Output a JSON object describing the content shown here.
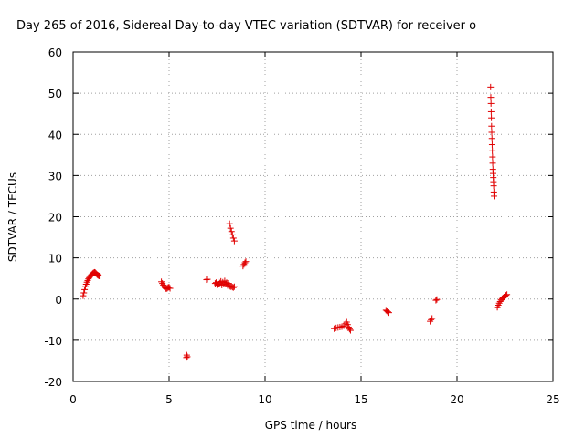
{
  "chart_data": {
    "type": "scatter",
    "title": "Day 265 of 2016, Sidereal Day-to-day VTEC variation (SDTVAR) for receiver o",
    "xlabel": "GPS time / hours",
    "ylabel": "SDTVAR / TECUs",
    "xlim": [
      0,
      25
    ],
    "ylim": [
      -20,
      60
    ],
    "xticks": [
      "0",
      "5",
      "10",
      "15",
      "20",
      "25"
    ],
    "yticks": [
      "-20",
      "-10",
      "0",
      "10",
      "20",
      "30",
      "40",
      "50",
      "60"
    ],
    "grid": true,
    "marker": "plus",
    "color": "#e00000",
    "series": [
      {
        "x": [
          0.52,
          0.56,
          0.6,
          0.64,
          0.68,
          0.72,
          0.76,
          0.8,
          0.84,
          0.88,
          0.92,
          0.96,
          1.0,
          1.04,
          1.08,
          1.12,
          1.16,
          1.2,
          1.24,
          1.28,
          1.32,
          1.36,
          4.6,
          4.65,
          4.7,
          4.75,
          4.8,
          4.85,
          4.9,
          4.95,
          5.0,
          5.05,
          5.9,
          5.92,
          5.95,
          6.95,
          7.0,
          7.4,
          7.45,
          7.5,
          7.55,
          7.6,
          7.65,
          7.7,
          7.75,
          7.8,
          7.85,
          7.9,
          7.95,
          8.0,
          8.05,
          8.1,
          8.15,
          8.2,
          8.25,
          8.3,
          8.35,
          8.4,
          8.15,
          8.2,
          8.25,
          8.3,
          8.35,
          8.4,
          8.85,
          8.9,
          8.95,
          9.0,
          13.6,
          13.7,
          13.8,
          13.9,
          14.0,
          14.1,
          14.2,
          14.25,
          14.3,
          14.35,
          14.4,
          14.45,
          16.3,
          16.35,
          16.4,
          16.45,
          18.6,
          18.65,
          18.7,
          18.9,
          18.95,
          21.75,
          21.76,
          21.77,
          21.78,
          21.79,
          21.8,
          21.81,
          21.82,
          21.83,
          21.84,
          21.85,
          21.86,
          21.87,
          21.88,
          21.89,
          21.9,
          21.91,
          21.92,
          21.93,
          22.1,
          22.15,
          22.2,
          22.25,
          22.3,
          22.35,
          22.4,
          22.45,
          22.5,
          22.55,
          22.6
        ],
        "y": [
          0.8,
          1.5,
          2.3,
          3.0,
          3.6,
          4.1,
          4.5,
          4.9,
          5.2,
          5.5,
          5.7,
          5.9,
          6.1,
          6.3,
          6.4,
          6.5,
          6.4,
          6.2,
          6.0,
          5.8,
          5.7,
          5.6,
          4.2,
          3.8,
          3.4,
          3.0,
          2.7,
          2.5,
          2.6,
          2.8,
          2.9,
          2.6,
          -14.2,
          -13.6,
          -14.0,
          4.7,
          4.8,
          3.8,
          4.0,
          3.5,
          4.2,
          3.6,
          3.9,
          4.3,
          3.4,
          4.1,
          3.7,
          4.4,
          3.6,
          4.0,
          3.3,
          3.8,
          3.2,
          3.0,
          3.1,
          2.9,
          2.8,
          3.0,
          18.3,
          17.2,
          16.4,
          15.6,
          14.8,
          14.1,
          8.0,
          8.4,
          8.8,
          9.1,
          -7.2,
          -7.0,
          -6.9,
          -6.8,
          -6.7,
          -6.5,
          -6.0,
          -5.6,
          -6.2,
          -6.8,
          -7.3,
          -7.6,
          -2.7,
          -2.9,
          -3.1,
          -3.3,
          -5.4,
          -5.0,
          -4.7,
          -0.3,
          -0.1,
          51.5,
          49.0,
          47.5,
          45.5,
          44.0,
          42.0,
          40.5,
          39.0,
          37.5,
          36.0,
          34.5,
          33.0,
          31.5,
          30.5,
          29.5,
          28.5,
          27.5,
          26.0,
          25.0,
          -2.0,
          -1.5,
          -1.0,
          -0.6,
          -0.2,
          0.1,
          0.3,
          0.5,
          0.7,
          0.9,
          1.1
        ]
      }
    ]
  }
}
